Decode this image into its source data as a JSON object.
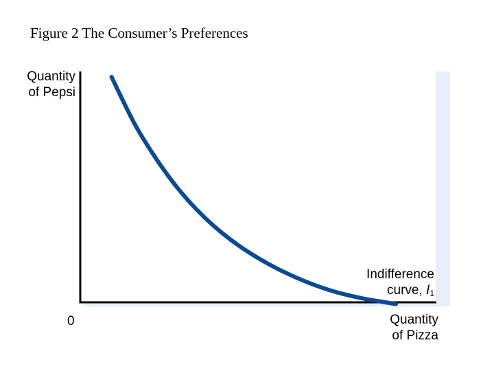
{
  "title": "Figure 2 The Consumer’s Preferences",
  "chart_data": {
    "type": "line",
    "title": "Figure 2 The Consumer’s Preferences",
    "ylabel_lines": [
      "Quantity",
      "of Pepsi"
    ],
    "xlabel_lines": [
      "Quantity",
      "of Pizza"
    ],
    "origin_label": "0",
    "xlim": [
      0,
      100
    ],
    "ylim": [
      0,
      100
    ],
    "grid": false,
    "series": [
      {
        "name": "Indifference curve, I1",
        "name_parts": {
          "line1": "Indifference",
          "line2_prefix": "curve, ",
          "symbol": "I",
          "subscript": "1"
        },
        "color": "#0b4a94",
        "x": [
          8.8,
          15,
          20,
          25,
          30,
          35,
          40,
          45,
          50,
          55,
          60,
          65,
          70,
          75,
          80,
          85,
          88.8
        ],
        "y": [
          100,
          80.5,
          67.7,
          56.6,
          47.1,
          39.1,
          32.3,
          26.5,
          21.6,
          17.3,
          13.6,
          10.4,
          7.7,
          5.6,
          3.9,
          2.6,
          1.6
        ]
      }
    ]
  },
  "colors": {
    "curve": "#0b4a94",
    "panel_shadow": "#e8eef8",
    "axis": "#000000"
  }
}
